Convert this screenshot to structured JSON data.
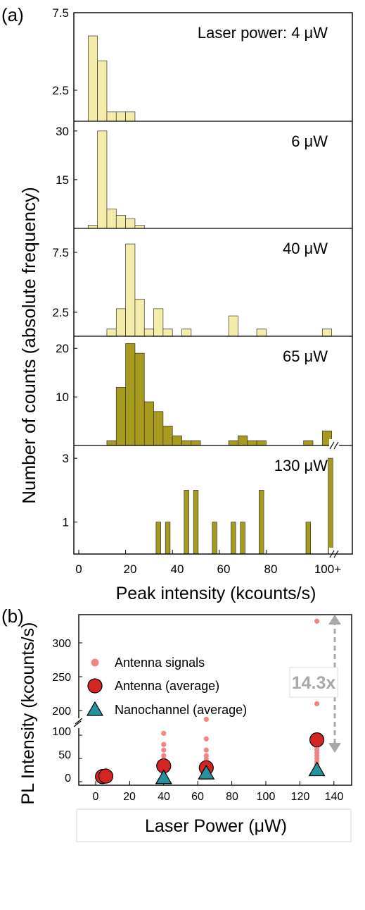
{
  "panel_a": {
    "label": "(a)",
    "ylabel": "Number of counts (absolute frequency)",
    "xlabel": "Peak intensity (kcounts/s)",
    "xticks": [
      "0",
      "20",
      "40",
      "60",
      "80",
      "100+"
    ]
  },
  "panel_b": {
    "label": "(b)",
    "ylabel": "PL Intensity (kcounts/s)",
    "xlabel": "Laser Power (μW)",
    "xticks": [
      "0",
      "20",
      "40",
      "60",
      "80",
      "100",
      "120",
      "140"
    ],
    "yticks_upper": [
      "200",
      "250",
      "300"
    ],
    "yticks_lower": [
      "0",
      "50",
      "100"
    ],
    "annotation": "14.3x",
    "legend": [
      "Antenna signals",
      "Antenna (average)",
      "Nanochannel (average)"
    ]
  },
  "colors": {
    "light_bar": "#f4ecaa",
    "dark_bar": "#a69a1f",
    "signal": "#ef8585",
    "average": "#d42424",
    "nanochannel": "#25939c",
    "annotation": "#a8a8a8"
  },
  "chart_data": [
    {
      "type": "bar",
      "title": "Laser power: 4 μW",
      "bin_width": 4,
      "x": [
        6,
        10,
        14,
        18,
        22
      ],
      "values": [
        6,
        4.4,
        1.1,
        1.1,
        1.1
      ],
      "yticks": [
        "2.5",
        "7.5"
      ],
      "ylim": [
        0.5,
        7.5
      ]
    },
    {
      "type": "bar",
      "title": "6 μW",
      "bin_width": 4,
      "x": [
        6,
        10,
        14,
        18,
        22,
        26
      ],
      "values": [
        1,
        30,
        6,
        4,
        3,
        1
      ],
      "yticks": [
        "15",
        "30"
      ],
      "ylim": [
        0,
        33
      ]
    },
    {
      "type": "bar",
      "title": "40 μW",
      "bin_width": 4,
      "x": [
        14,
        18,
        22,
        26,
        30,
        34,
        38,
        46,
        66,
        78,
        106
      ],
      "values": [
        1.1,
        2.8,
        8.2,
        3.6,
        1.1,
        2.8,
        1.1,
        1.1,
        2.2,
        1.1,
        1.1
      ],
      "yticks": [
        "2.5",
        "7.5"
      ],
      "ylim": [
        0.5,
        9.5
      ]
    },
    {
      "type": "bar",
      "title": "65 μW",
      "bin_width": 4,
      "x": [
        14,
        18,
        22,
        26,
        30,
        34,
        38,
        42,
        46,
        50,
        66,
        70,
        74,
        78,
        98,
        106
      ],
      "values": [
        1,
        12,
        21,
        19,
        9,
        7,
        4,
        2,
        1,
        1,
        1,
        2,
        1,
        1,
        1,
        3
      ],
      "yticks": [
        "10",
        "20"
      ],
      "ylim": [
        0,
        22.5
      ]
    },
    {
      "type": "bar",
      "title": "130 μW",
      "bin_width": 2,
      "x": [
        34,
        38,
        46,
        50,
        58,
        66,
        70,
        78,
        98,
        107.5
      ],
      "values": [
        1,
        1,
        2,
        2,
        1,
        1,
        1,
        2,
        1,
        3
      ],
      "yticks": [
        "1",
        "3"
      ],
      "ylim": [
        0,
        3.4
      ]
    },
    {
      "type": "scatter",
      "series": [
        {
          "name": "Antenna signals",
          "points": [
            [
              4,
              10
            ],
            [
              4,
              14
            ],
            [
              4,
              18
            ],
            [
              4,
              22
            ],
            [
              6,
              8
            ],
            [
              6,
              16
            ],
            [
              6,
              24
            ],
            [
              40,
              10
            ],
            [
              40,
              18
            ],
            [
              40,
              24
            ],
            [
              40,
              32
            ],
            [
              40,
              40
            ],
            [
              40,
              48
            ],
            [
              40,
              56
            ],
            [
              40,
              68
            ],
            [
              40,
              80
            ],
            [
              40,
              104
            ],
            [
              65,
              10
            ],
            [
              65,
              16
            ],
            [
              65,
              24
            ],
            [
              65,
              34
            ],
            [
              65,
              42
            ],
            [
              65,
              48
            ],
            [
              65,
              56
            ],
            [
              65,
              68
            ],
            [
              65,
              92
            ],
            [
              65,
              187
            ],
            [
              130,
              30
            ],
            [
              130,
              38
            ],
            [
              130,
              44
            ],
            [
              130,
              50
            ],
            [
              130,
              56
            ],
            [
              130,
              62
            ],
            [
              130,
              68
            ],
            [
              130,
              74
            ],
            [
              130,
              80
            ],
            [
              130,
              96
            ],
            [
              130,
              210
            ],
            [
              130,
              332
            ]
          ]
        },
        {
          "name": "Antenna (average)",
          "x": [
            4,
            6,
            40,
            65,
            130
          ],
          "y": [
            11,
            12,
            34,
            30,
            90
          ]
        },
        {
          "name": "Nanochannel (average)",
          "x": [
            40,
            65,
            130
          ],
          "y": [
            8,
            18,
            25
          ]
        }
      ],
      "xlim": [
        -10,
        150
      ],
      "ylim_lower": [
        -8,
        118
      ],
      "ylim_upper": [
        178,
        340
      ]
    }
  ]
}
